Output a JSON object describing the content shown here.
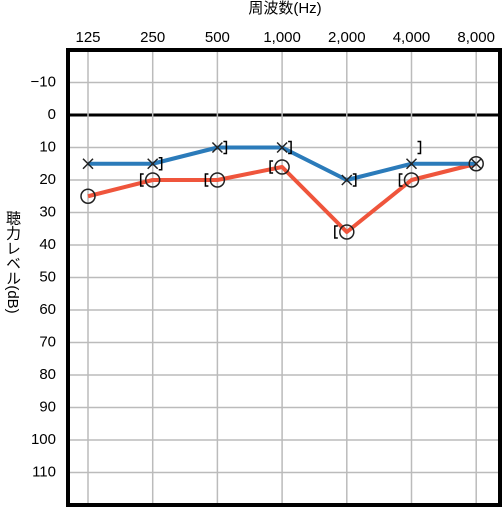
{
  "chart_data": {
    "type": "line",
    "title": "周波数(Hz)",
    "y_label": "聴力レベル(dB)",
    "categories": [
      "125",
      "250",
      "500",
      "1,000",
      "2,000",
      "4,000",
      "8,000"
    ],
    "ylim": [
      -20,
      120
    ],
    "y_inverted": true,
    "grid": true,
    "yticks": [
      {
        "value": -10,
        "label": "−10"
      },
      0,
      10,
      20,
      30,
      40,
      50,
      60,
      70,
      80,
      90,
      100,
      110
    ],
    "series": [
      {
        "color": "#ef553c",
        "marker": "circle",
        "line": true,
        "values": [
          25,
          20,
          20,
          16,
          36,
          20,
          15
        ]
      },
      {
        "color": "#2b7bba",
        "marker": "x",
        "line": true,
        "values": [
          15,
          15,
          10,
          10,
          20,
          15,
          15
        ]
      },
      {
        "color": "#000000",
        "marker": "bracket-left",
        "line": false,
        "values": [
          null,
          20,
          20,
          16,
          36,
          20,
          null
        ]
      },
      {
        "color": "#000000",
        "marker": "bracket-right",
        "line": false,
        "values": [
          null,
          15,
          10,
          10,
          20,
          10,
          null
        ]
      }
    ]
  }
}
